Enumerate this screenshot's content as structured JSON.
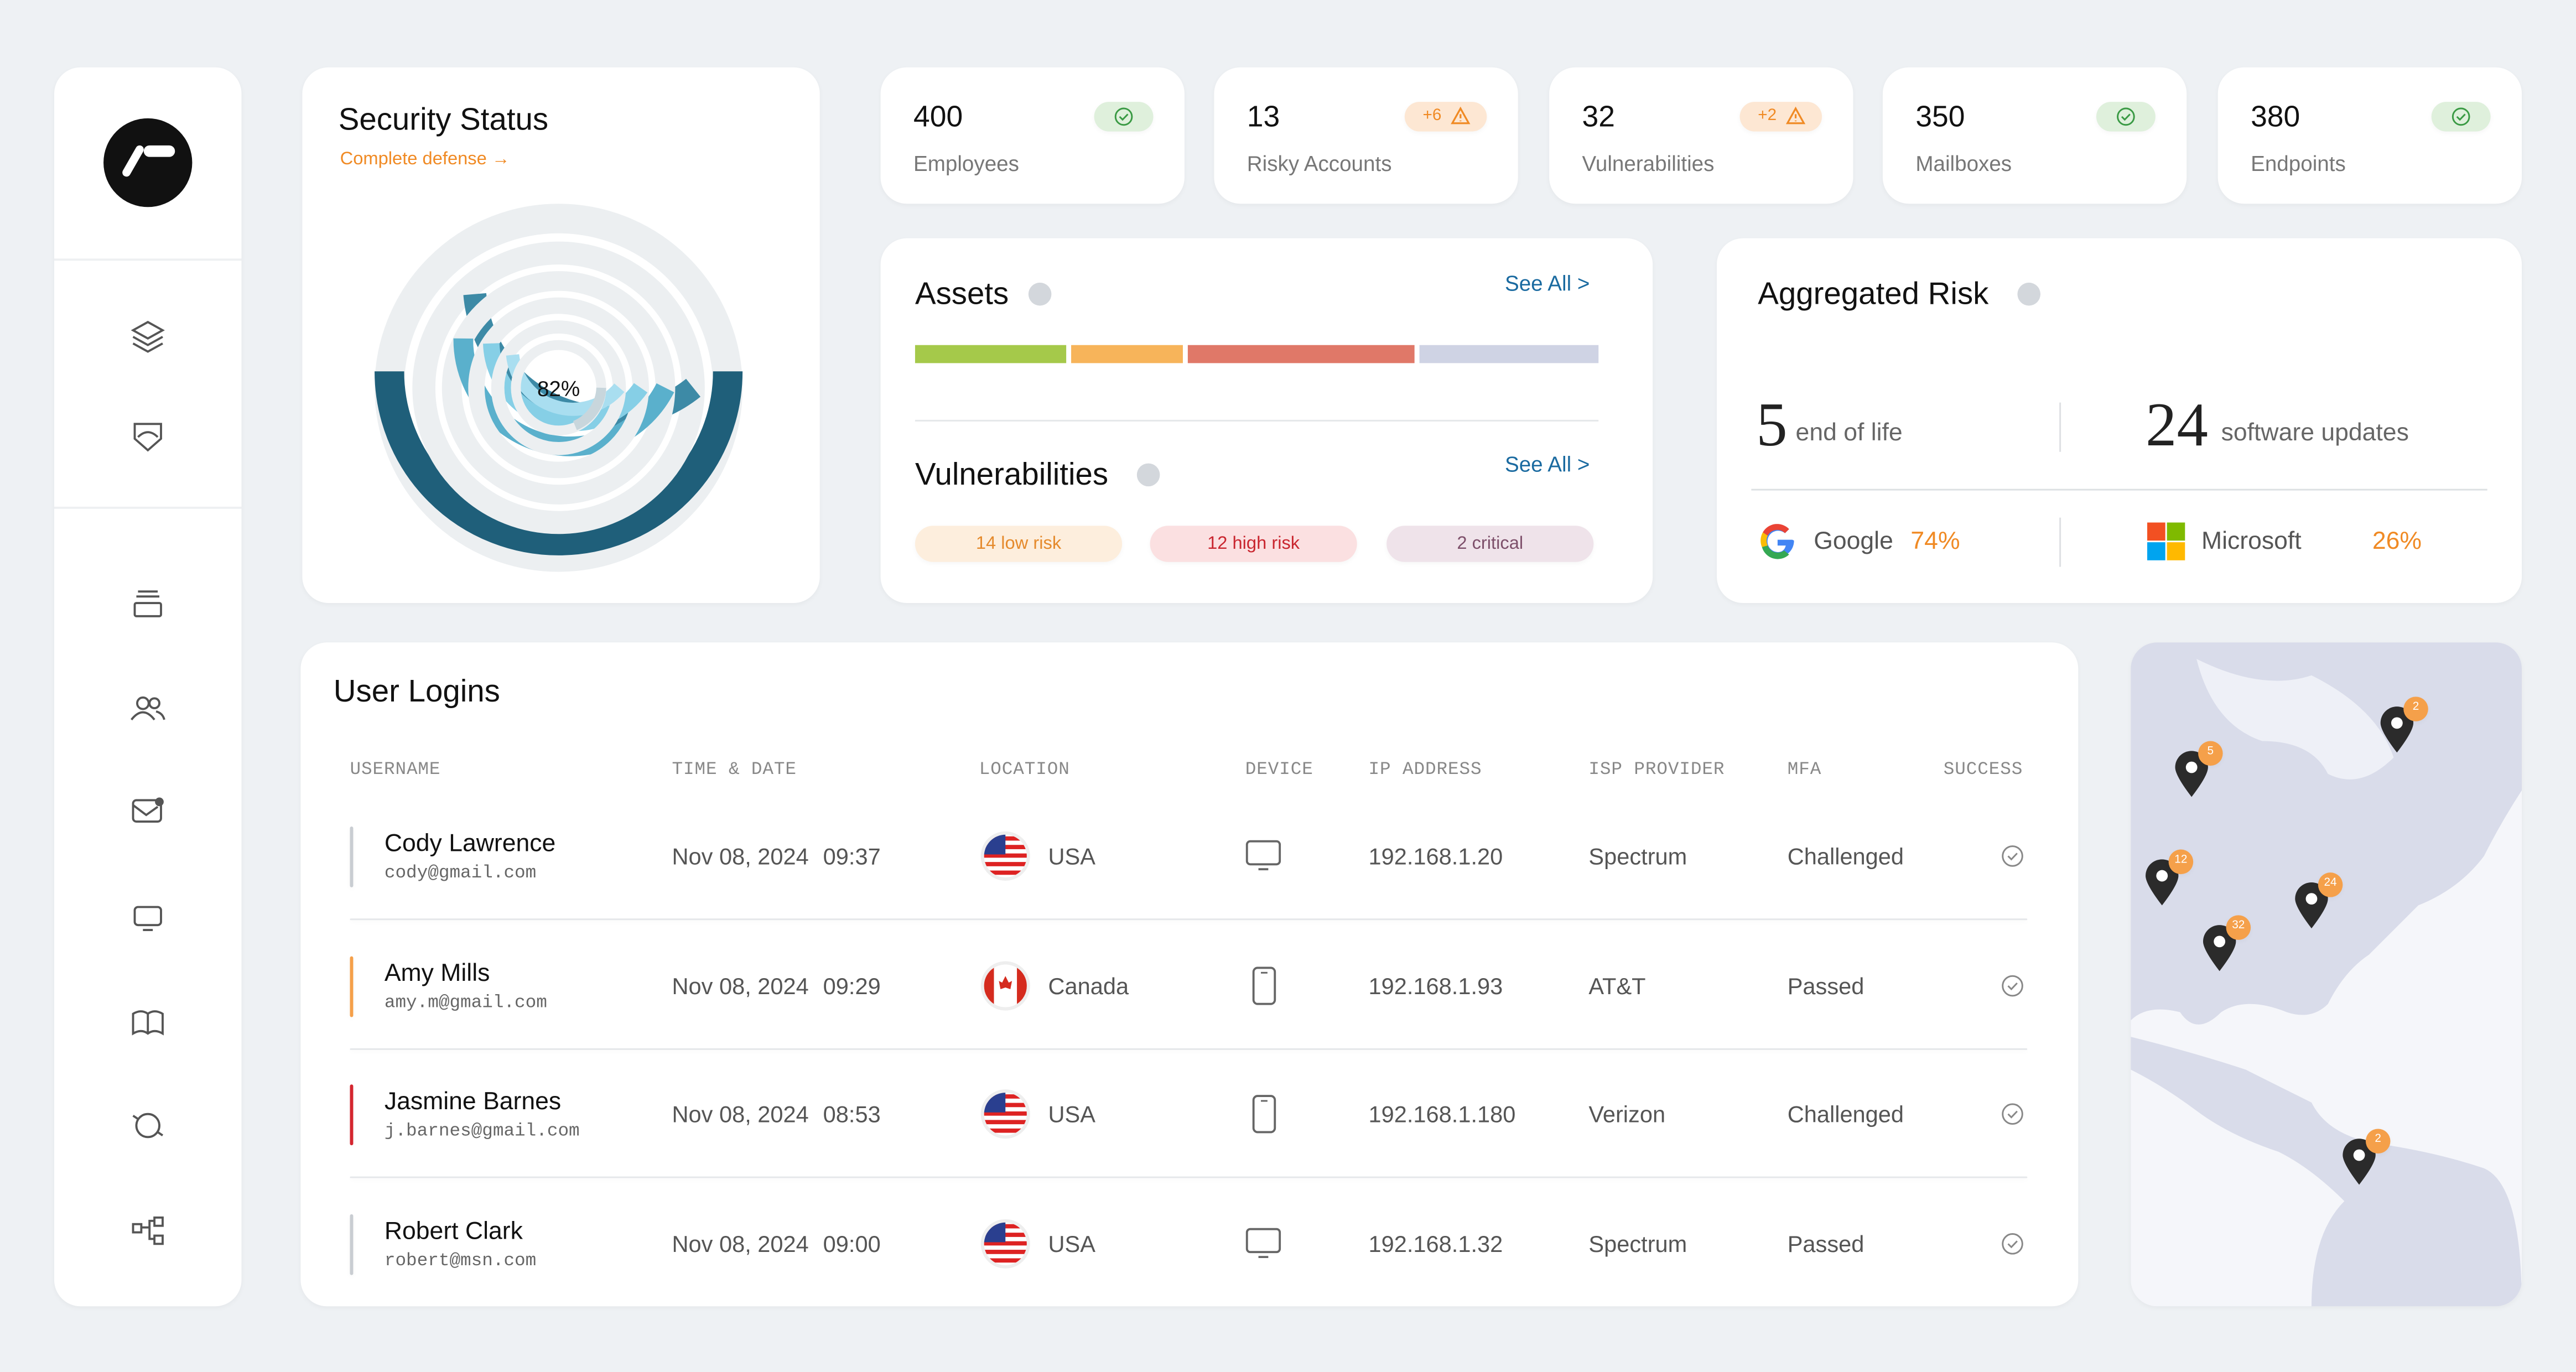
{
  "security_status": {
    "title": "Security Status",
    "link": "Complete defense →",
    "center_label": "82%"
  },
  "stats": [
    {
      "value": "400",
      "label": "Employees"
    },
    {
      "value": "13",
      "label": "Risky Accounts",
      "badge": "+6"
    },
    {
      "value": "32",
      "label": "Vulnerabilities",
      "badge": "+2"
    },
    {
      "value": "350",
      "label": "Mailboxes"
    },
    {
      "value": "380",
      "label": "Endpoints"
    }
  ],
  "assets": {
    "title": "Assets",
    "see_all": "See All >"
  },
  "vulnerabilities": {
    "title": "Vulnerabilities",
    "see_all": "See All >",
    "tags": [
      "14 low risk",
      "12 high risk",
      "2 critical"
    ]
  },
  "aggregated_risk": {
    "title": "Aggregated Risk",
    "metrics": [
      {
        "value": "5",
        "label": "end of life"
      },
      {
        "value": "24",
        "label": "software updates"
      }
    ],
    "vendors": [
      {
        "name": "Google",
        "share": "74%"
      },
      {
        "name": "Microsoft",
        "share": "26%"
      }
    ]
  },
  "user_logins": {
    "title": "User Logins",
    "columns": [
      "USERNAME",
      "TIME & DATE",
      "LOCATION",
      "DEVICE",
      "IP ADDRESS",
      "ISP PROVIDER",
      "MFA",
      "SUCCESS"
    ],
    "rows": [
      {
        "name": "Cody Lawrence",
        "email": "cody@gmail.com",
        "date": "Nov 08, 2024",
        "time": "09:37",
        "location": "USA",
        "ip": "192.168.1.20",
        "isp": "Spectrum",
        "mfa": "Challenged"
      },
      {
        "name": "Amy Mills",
        "email": "amy.m@gmail.com",
        "date": "Nov 08, 2024",
        "time": "09:29",
        "location": "Canada",
        "ip": "192.168.1.93",
        "isp": "AT&T",
        "mfa": "Passed"
      },
      {
        "name": "Jasmine Barnes",
        "email": "j.barnes@gmail.com",
        "date": "Nov 08, 2024",
        "time": "08:53",
        "location": "USA",
        "ip": "192.168.1.180",
        "isp": "Verizon",
        "mfa": "Challenged"
      },
      {
        "name": "Robert Clark",
        "email": "robert@msn.com",
        "date": "Nov 08, 2024",
        "time": "09:00",
        "location": "USA",
        "ip": "192.168.1.32",
        "isp": "Spectrum",
        "mfa": "Passed"
      }
    ]
  },
  "map": {
    "pins": [
      "5",
      "2",
      "12",
      "24",
      "32",
      "2"
    ]
  }
}
